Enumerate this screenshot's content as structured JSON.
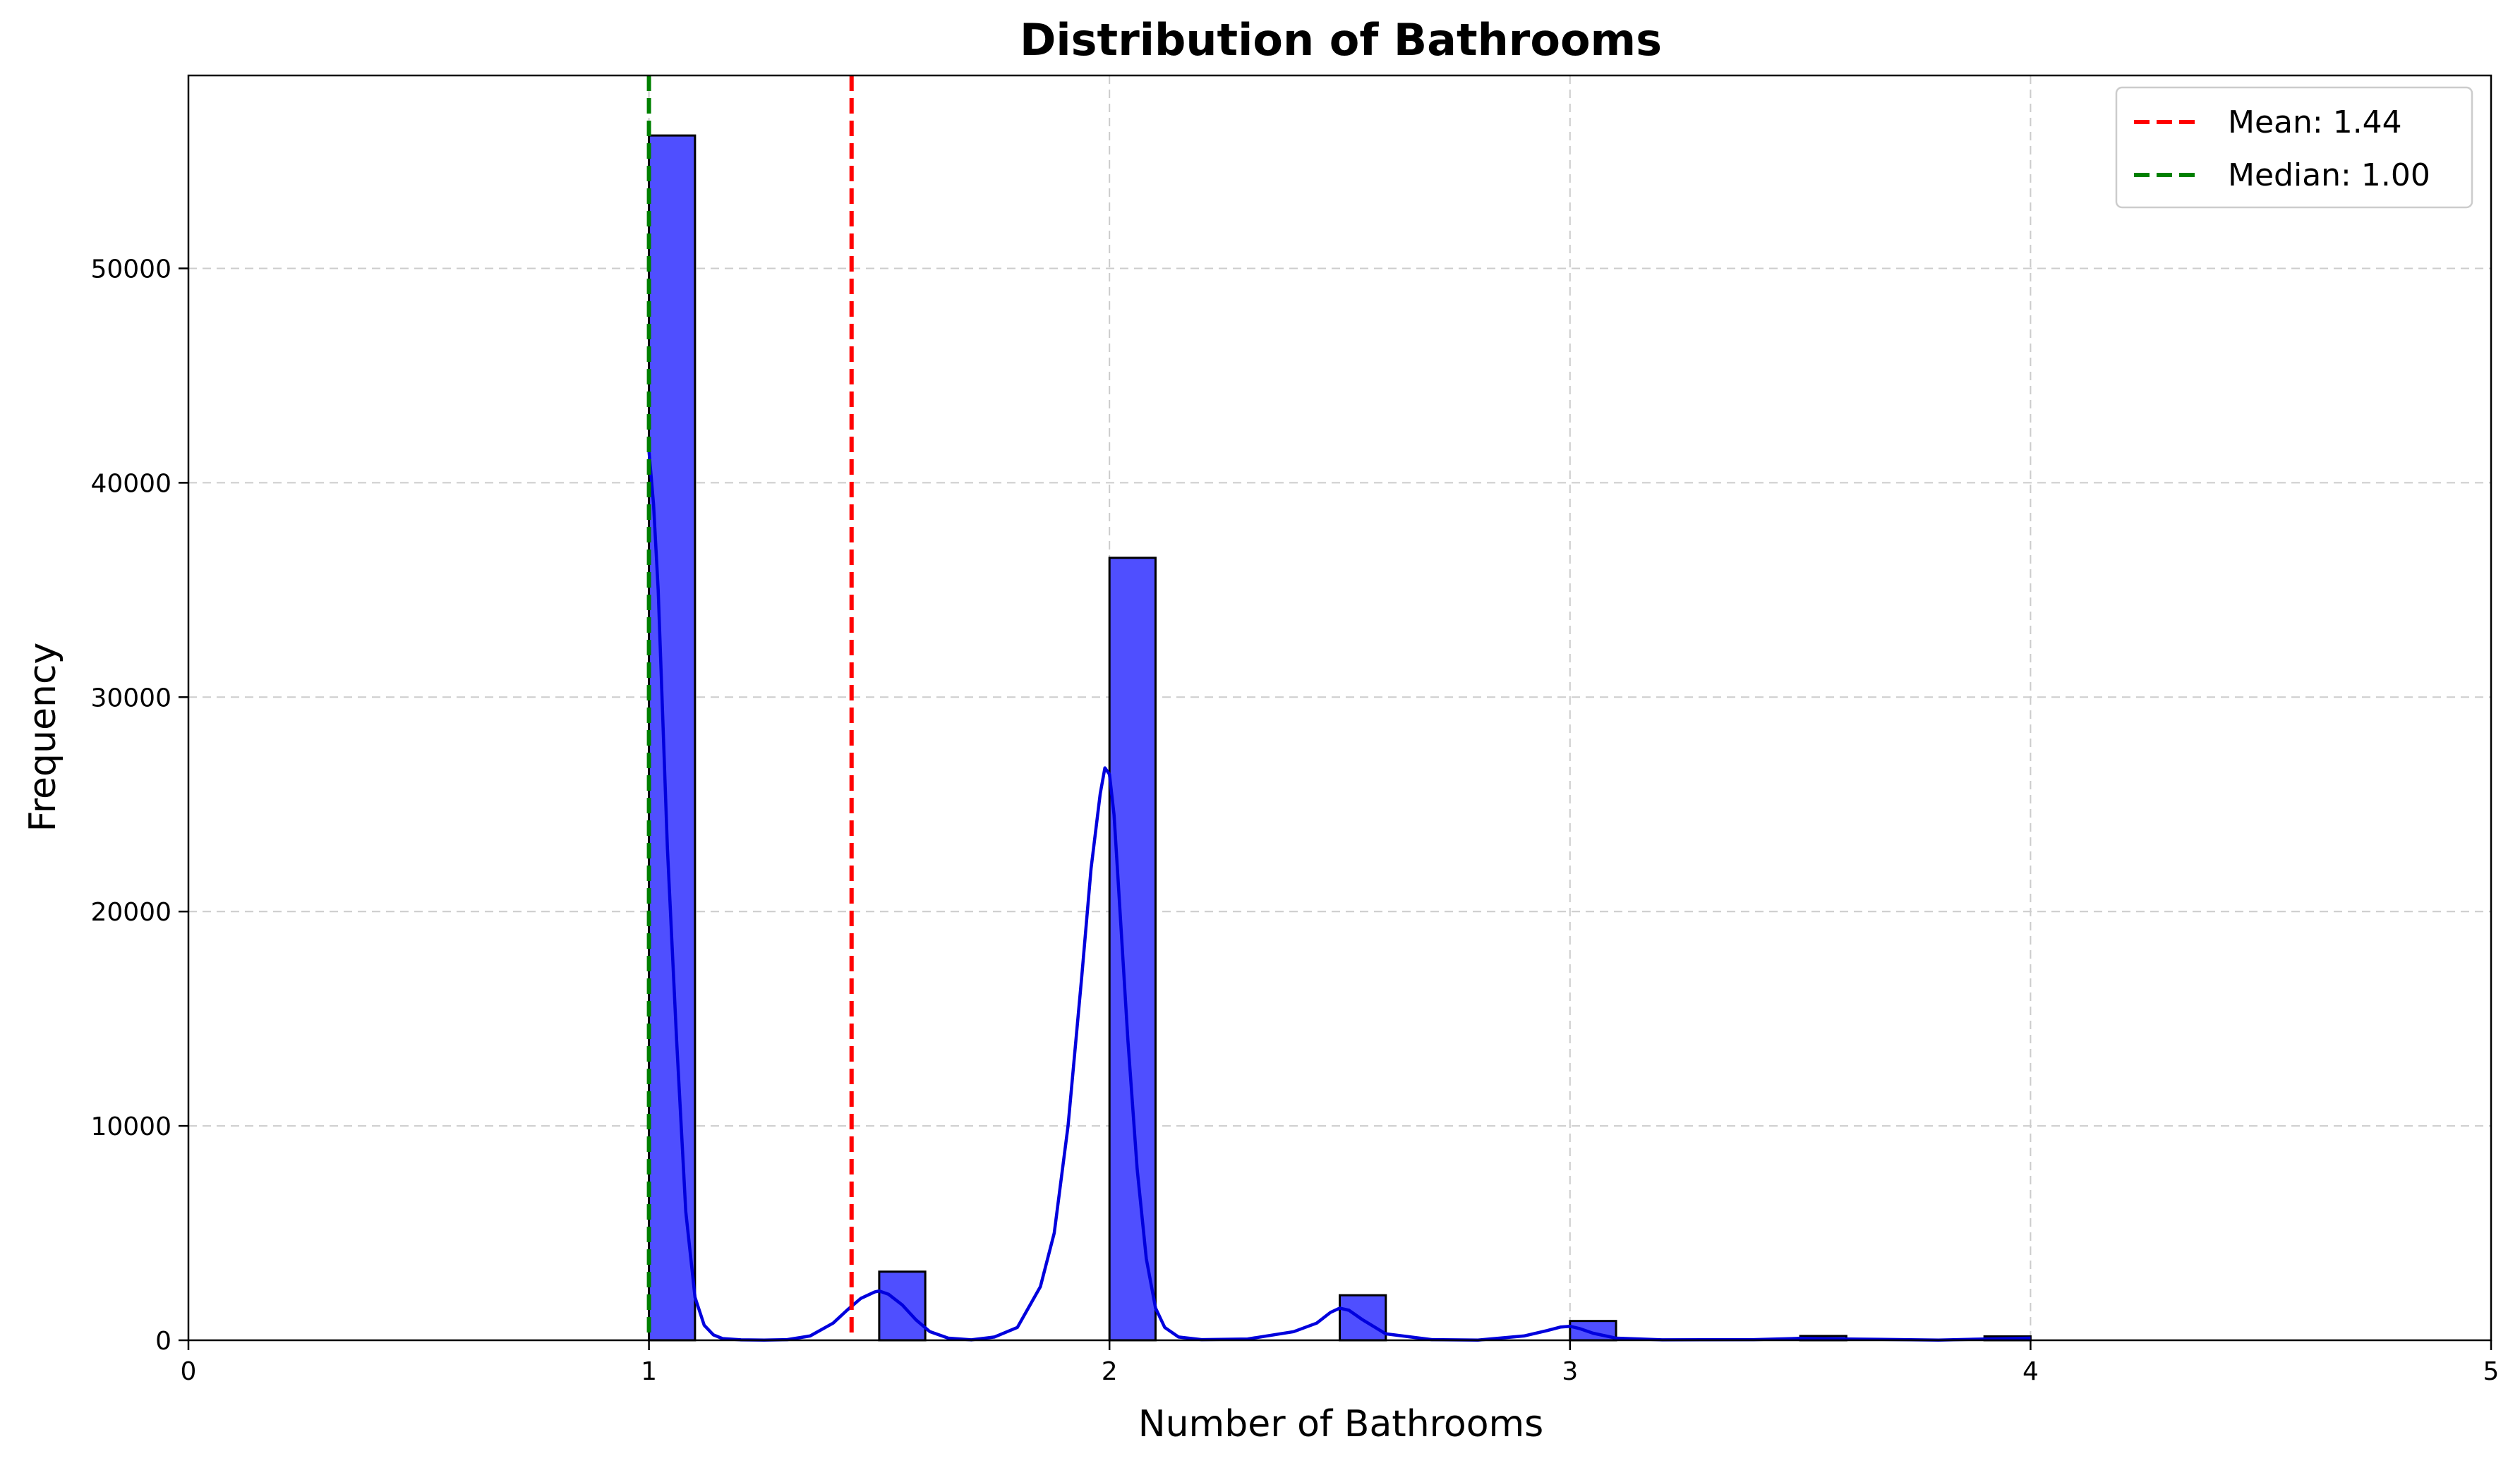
{
  "chart_data": {
    "type": "bar",
    "title": "Distribution of Bathrooms",
    "xlabel": "Number of Bathrooms",
    "ylabel": "Frequency",
    "xlim": [
      0,
      5
    ],
    "ylim": [
      0,
      59000
    ],
    "x_ticks": [
      "0",
      "1",
      "2",
      "3",
      "4",
      "5"
    ],
    "y_ticks": [
      "0",
      "10000",
      "20000",
      "30000",
      "40000",
      "50000"
    ],
    "grid": true,
    "bin_width": 0.1,
    "bins": [
      {
        "x0": 1.0,
        "value": 56200
      },
      {
        "x0": 1.5,
        "value": 3200
      },
      {
        "x0": 2.0,
        "value": 36500
      },
      {
        "x0": 2.5,
        "value": 2100
      },
      {
        "x0": 3.0,
        "value": 900
      },
      {
        "x0": 3.5,
        "value": 200
      },
      {
        "x0": 3.9,
        "value": 180
      }
    ],
    "kde": {
      "x": [
        1.0,
        1.01,
        1.02,
        1.03,
        1.04,
        1.06,
        1.08,
        1.1,
        1.12,
        1.14,
        1.16,
        1.2,
        1.25,
        1.3,
        1.35,
        1.4,
        1.43,
        1.46,
        1.49,
        1.5,
        1.52,
        1.55,
        1.58,
        1.61,
        1.65,
        1.7,
        1.75,
        1.8,
        1.85,
        1.88,
        1.91,
        1.94,
        1.96,
        1.98,
        1.99,
        2.0,
        2.01,
        2.02,
        2.04,
        2.06,
        2.08,
        2.1,
        2.12,
        2.15,
        2.2,
        2.3,
        2.4,
        2.45,
        2.48,
        2.5,
        2.52,
        2.55,
        2.6,
        2.7,
        2.8,
        2.9,
        2.95,
        2.98,
        3.0,
        3.02,
        3.05,
        3.1,
        3.2,
        3.4,
        3.5,
        3.6,
        3.8,
        3.9,
        4.0
      ],
      "y": [
        41500,
        39000,
        35000,
        29000,
        23000,
        14000,
        6000,
        2000,
        700,
        250,
        80,
        20,
        5,
        30,
        200,
        800,
        1400,
        1950,
        2250,
        2300,
        2150,
        1650,
        950,
        400,
        100,
        20,
        150,
        600,
        2500,
        5000,
        10000,
        17000,
        22000,
        25500,
        26700,
        26400,
        24500,
        21000,
        14000,
        8000,
        3800,
        1500,
        600,
        150,
        30,
        60,
        400,
        800,
        1300,
        1500,
        1400,
        950,
        300,
        30,
        10,
        200,
        450,
        620,
        650,
        550,
        330,
        100,
        20,
        30,
        90,
        60,
        10,
        60,
        100
      ]
    },
    "reference_lines": [
      {
        "name": "Mean: 1.44",
        "x": 1.44,
        "color": "#ff0000"
      },
      {
        "name": "Median: 1.00",
        "x": 1.0,
        "color": "#008000"
      }
    ],
    "legend_placement": "top-right",
    "bar_color": "#4f4fff",
    "bar_edge_color": "#000000",
    "kde_color": "#0000dd"
  }
}
